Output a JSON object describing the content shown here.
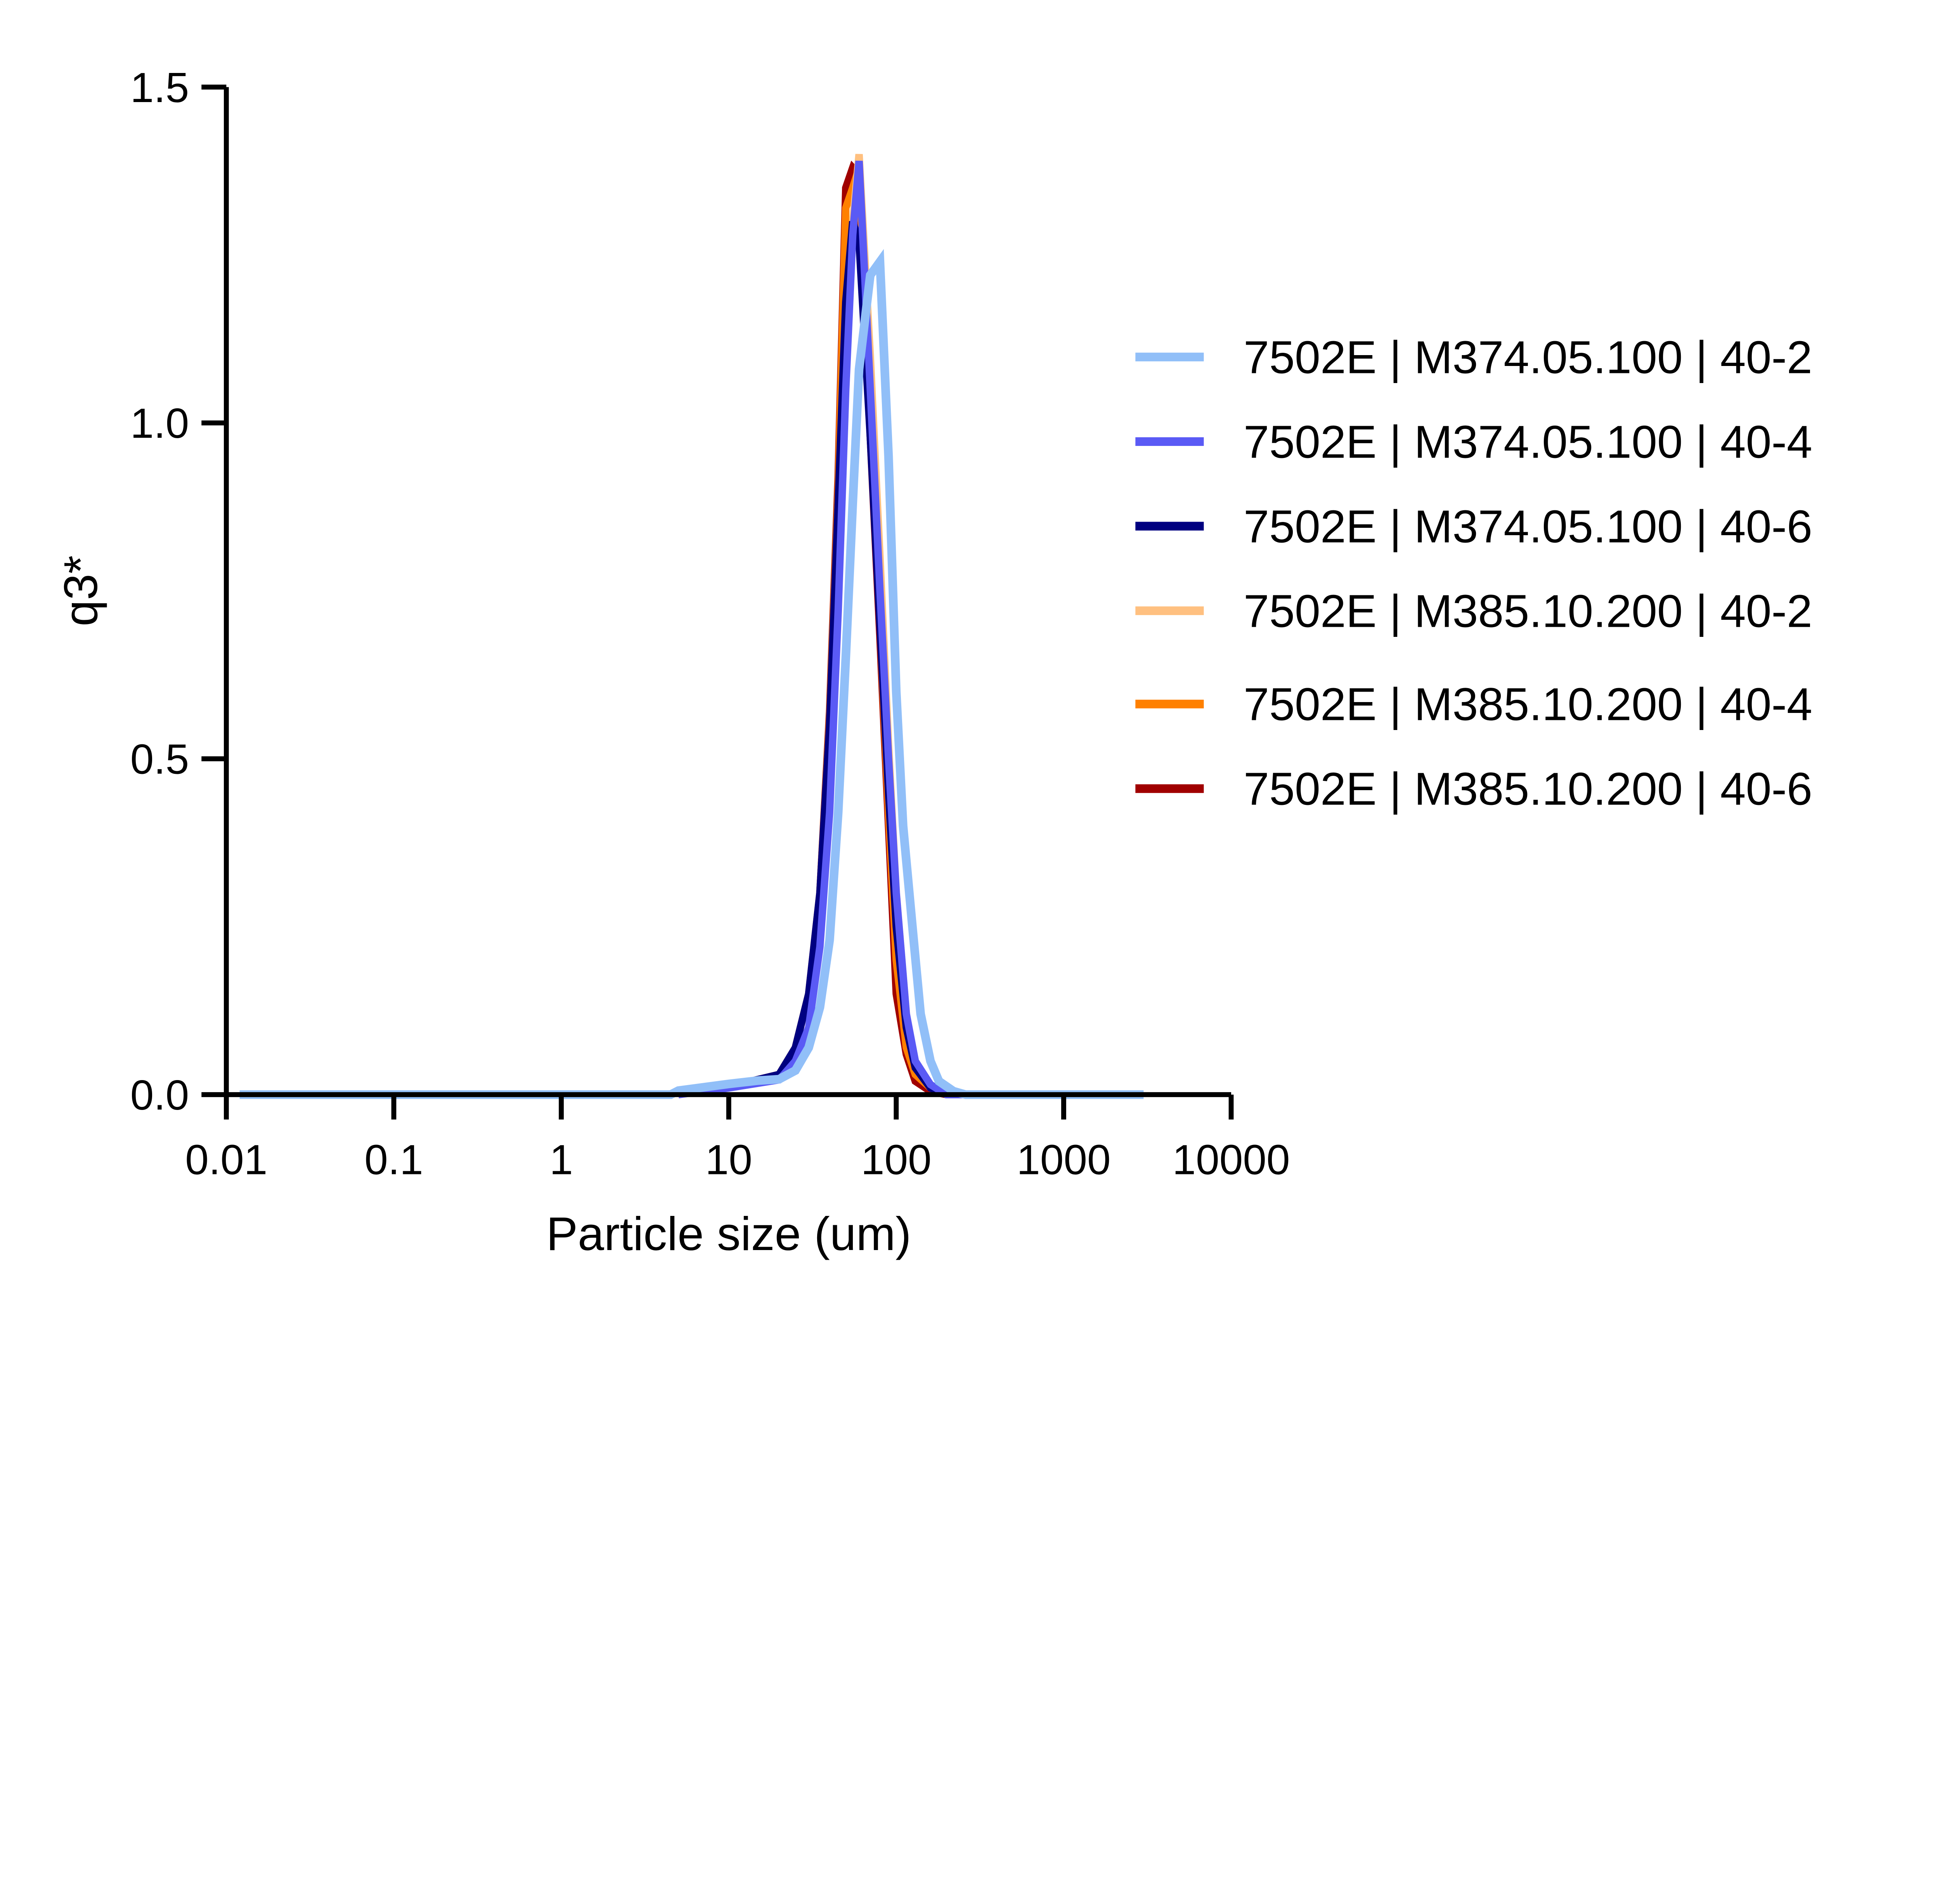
{
  "chart_data": {
    "type": "line",
    "title": "",
    "xlabel": "Particle size (um)",
    "ylabel": "q3*",
    "xscale": "log",
    "xlim": [
      0.01,
      10000
    ],
    "ylim": [
      0,
      1.5
    ],
    "xticks": [
      0.01,
      0.1,
      1,
      10,
      100,
      1000,
      10000
    ],
    "xtick_labels": [
      "0.01",
      "0.1",
      "1",
      "10",
      "100",
      "1000",
      "10000"
    ],
    "yticks": [
      0,
      0.5,
      1.0,
      1.5
    ],
    "ytick_labels": [
      "0.0",
      "0.5",
      "1.0",
      "1.5"
    ],
    "grid": false,
    "legend_position": "right",
    "series": [
      {
        "name": "7502E | M374.05.100 | 40-2",
        "color": "#91BFF8",
        "points": [
          [
            0.012,
            0
          ],
          [
            4.5,
            0
          ],
          [
            5,
            0.006
          ],
          [
            10,
            0.016
          ],
          [
            15,
            0.021
          ],
          [
            20,
            0.023
          ],
          [
            25,
            0.036
          ],
          [
            30,
            0.07
          ],
          [
            35,
            0.13
          ],
          [
            40,
            0.23
          ],
          [
            45,
            0.42
          ],
          [
            50,
            0.65
          ],
          [
            55,
            0.88
          ],
          [
            60,
            1.08
          ],
          [
            70,
            1.22
          ],
          [
            80,
            1.24
          ],
          [
            90,
            0.95
          ],
          [
            100,
            0.6
          ],
          [
            110,
            0.4
          ],
          [
            125,
            0.25
          ],
          [
            140,
            0.12
          ],
          [
            160,
            0.05
          ],
          [
            180,
            0.02
          ],
          [
            220,
            0.005
          ],
          [
            260,
            0
          ],
          [
            3000,
            0
          ]
        ]
      },
      {
        "name": "7502E | M374.05.100 | 40-4",
        "color": "#5A5AF5",
        "points": [
          [
            5,
            0
          ],
          [
            10,
            0.01
          ],
          [
            20,
            0.022
          ],
          [
            25,
            0.05
          ],
          [
            30,
            0.1
          ],
          [
            35,
            0.22
          ],
          [
            40,
            0.42
          ],
          [
            45,
            0.72
          ],
          [
            50,
            1.05
          ],
          [
            55,
            1.28
          ],
          [
            60,
            1.39
          ],
          [
            70,
            1.05
          ],
          [
            80,
            0.75
          ],
          [
            90,
            0.5
          ],
          [
            100,
            0.3
          ],
          [
            115,
            0.12
          ],
          [
            130,
            0.05
          ],
          [
            160,
            0.015
          ],
          [
            200,
            0
          ],
          [
            260,
            0
          ]
        ]
      },
      {
        "name": "7502E | M374.05.100 | 40-6",
        "color": "#000080",
        "points": [
          [
            5,
            0
          ],
          [
            10,
            0.012
          ],
          [
            20,
            0.03
          ],
          [
            25,
            0.07
          ],
          [
            30,
            0.15
          ],
          [
            35,
            0.3
          ],
          [
            40,
            0.55
          ],
          [
            45,
            0.88
          ],
          [
            50,
            1.18
          ],
          [
            55,
            1.3
          ],
          [
            60,
            1.27
          ],
          [
            70,
            0.98
          ],
          [
            80,
            0.7
          ],
          [
            90,
            0.45
          ],
          [
            100,
            0.25
          ],
          [
            115,
            0.1
          ],
          [
            130,
            0.04
          ],
          [
            160,
            0.01
          ],
          [
            200,
            0
          ]
        ]
      },
      {
        "name": "7502E | M385.10.200 | 40-2",
        "color": "#FFC080",
        "points": [
          [
            5,
            0
          ],
          [
            10,
            0.012
          ],
          [
            20,
            0.03
          ],
          [
            25,
            0.07
          ],
          [
            30,
            0.15
          ],
          [
            35,
            0.3
          ],
          [
            40,
            0.55
          ],
          [
            45,
            0.88
          ],
          [
            50,
            1.15
          ],
          [
            55,
            1.3
          ],
          [
            60,
            1.4
          ],
          [
            70,
            1.1
          ],
          [
            80,
            0.8
          ],
          [
            90,
            0.52
          ],
          [
            100,
            0.3
          ],
          [
            115,
            0.12
          ],
          [
            130,
            0.04
          ],
          [
            160,
            0.01
          ],
          [
            200,
            0
          ]
        ]
      },
      {
        "name": "7502E | M385.10.200 | 40-4",
        "color": "#FF8000",
        "points": [
          [
            5,
            0
          ],
          [
            10,
            0.012
          ],
          [
            20,
            0.03
          ],
          [
            25,
            0.07
          ],
          [
            30,
            0.15
          ],
          [
            35,
            0.3
          ],
          [
            40,
            0.56
          ],
          [
            45,
            0.9
          ],
          [
            50,
            1.32
          ],
          [
            55,
            1.35
          ],
          [
            60,
            1.38
          ],
          [
            70,
            1.0
          ],
          [
            80,
            0.7
          ],
          [
            90,
            0.42
          ],
          [
            100,
            0.2
          ],
          [
            115,
            0.07
          ],
          [
            130,
            0.03
          ],
          [
            160,
            0.01
          ],
          [
            200,
            0
          ]
        ]
      },
      {
        "name": "7502E | M385.10.200 | 40-6",
        "color": "#A00000",
        "points": [
          [
            5,
            0
          ],
          [
            10,
            0.012
          ],
          [
            20,
            0.03
          ],
          [
            25,
            0.07
          ],
          [
            30,
            0.15
          ],
          [
            35,
            0.3
          ],
          [
            40,
            0.57
          ],
          [
            45,
            0.92
          ],
          [
            50,
            1.35
          ],
          [
            55,
            1.38
          ],
          [
            60,
            1.37
          ],
          [
            70,
            0.98
          ],
          [
            80,
            0.68
          ],
          [
            90,
            0.4
          ],
          [
            100,
            0.15
          ],
          [
            115,
            0.06
          ],
          [
            130,
            0.02
          ],
          [
            160,
            0.005
          ],
          [
            200,
            0
          ]
        ]
      }
    ]
  }
}
